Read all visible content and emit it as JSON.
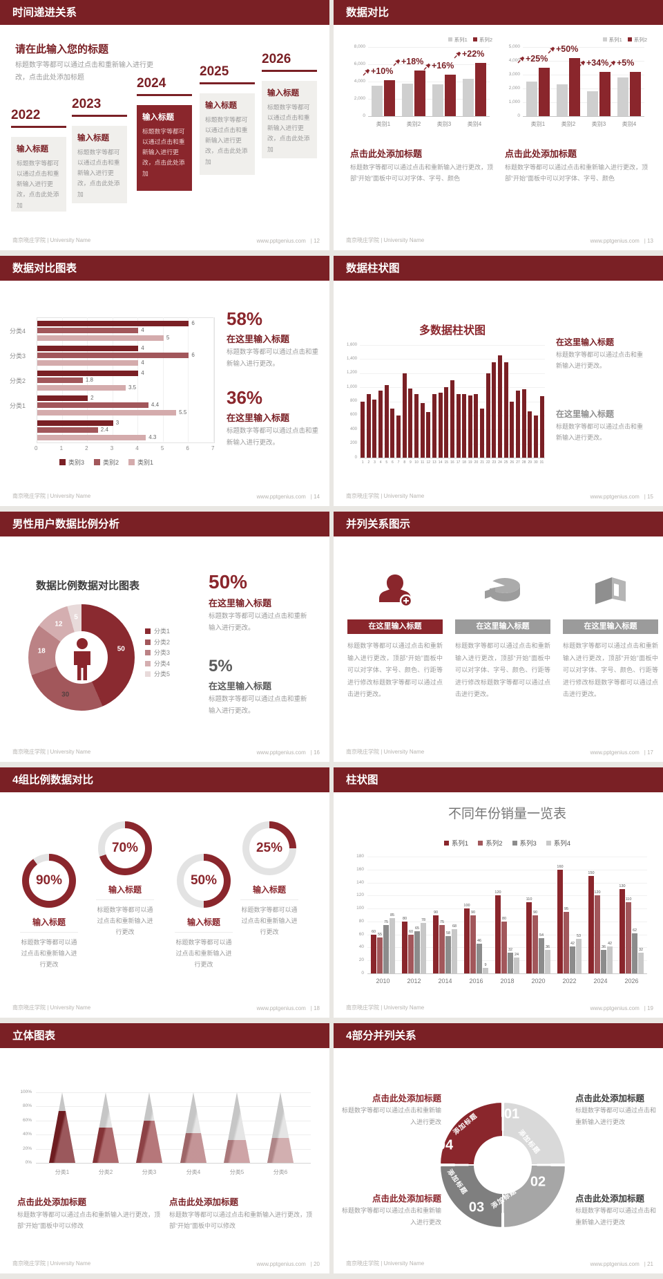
{
  "footer": {
    "left": "南京晓庄学院 | University Name",
    "site": "www.pptgenius.com",
    "sep": "| "
  },
  "slides": [
    {
      "header": "时间递进关系",
      "page": "12",
      "intro_title": "请在此输入您的标题",
      "intro_body": "标题数字等都可以通过点击和重新输入进行更改，点击此处添加标题",
      "card_title": "输入标题",
      "card_body": "标题数字等都可以通过点击和重新输入进行更改，点击此处添加",
      "years": [
        "2022",
        "2023",
        "2024",
        "2025",
        "2026"
      ]
    },
    {
      "header": "数据对比",
      "page": "13",
      "section_title": "点击此处添加标题",
      "section_body": "标题数字等都可以通过点击和重新输入进行更改，顶部“开始”面板中可以对字体、字号、颜色"
    },
    {
      "header": "数据对比图表",
      "page": "14",
      "stats": [
        {
          "pct": "58%",
          "title": "在这里输入标题",
          "body": "标题数字等都可以通过点击和重新输入进行更改。"
        },
        {
          "pct": "36%",
          "title": "在这里输入标题",
          "body": "标题数字等都可以通过点击和重新输入进行更改。"
        }
      ]
    },
    {
      "header": "数据柱状图",
      "page": "15",
      "blocks": [
        {
          "title": "在这里输入标题",
          "body": "标题数字等都可以通过点击和重新输入进行更改。"
        },
        {
          "title": "在这里输入标题",
          "body": "标题数字等都可以通过点击和重新输入进行更改。"
        }
      ]
    },
    {
      "header": "男性用户数据比例分析",
      "page": "16",
      "chart_title": "数据比例数据对比图表",
      "stats": [
        {
          "pct": "50%",
          "title": "在这里输入标题",
          "body": "标题数字等都可以通过点击和重新输入进行更改。"
        },
        {
          "pct": "5%",
          "title": "在这里输入标题",
          "body": "标题数字等都可以通过点击和重新输入进行更改。"
        }
      ]
    },
    {
      "header": "并列关系图示",
      "page": "17",
      "columns": [
        {
          "icon": "woman-plus-icon",
          "title": "在这里输入标题",
          "body": "标题数字等都可以通过点击和重新输入进行更改，顶部“开始”面板中可以对字体、字号、颜色、行距等进行修改标题数字等都可以通过点击进行更改。"
        },
        {
          "icon": "pie-3d-icon",
          "title": "在这里输入标题",
          "body": "标题数字等都可以通过点击和重新输入进行更改，顶部“开始”面板中可以对字体、字号、颜色、行距等进行修改标题数字等都可以通过点击进行更改。"
        },
        {
          "icon": "building-3d-icon",
          "title": "在这里输入标题",
          "body": "标题数字等都可以通过点击和重新输入进行更改，顶部“开始”面板中可以对字体、字号、颜色、行距等进行修改标题数字等都可以通过点击进行更改。"
        }
      ]
    },
    {
      "header": "4组比例数据对比",
      "page": "18",
      "items": [
        {
          "pct": "90%",
          "title": "输入标题",
          "body": "标题数字等都可以通过点击和重新输入进行更改"
        },
        {
          "pct": "70%",
          "title": "输入标题",
          "body": "标题数字等都可以通过点击和重新输入进行更改"
        },
        {
          "pct": "50%",
          "title": "输入标题",
          "body": "标题数字等都可以通过点击和重新输入进行更改"
        },
        {
          "pct": "25%",
          "title": "输入标题",
          "body": "标题数字等都可以通过点击和重新输入进行更改"
        }
      ]
    },
    {
      "header": "柱状图",
      "page": "19"
    },
    {
      "header": "立体图表",
      "page": "20",
      "blocks": [
        {
          "title": "点击此处添加标题",
          "body": "标题数字等都可以通过点击和重新输入进行更改，顶部“开始”面板中可以修改"
        },
        {
          "title": "点击此处添加标题",
          "body": "标题数字等都可以通过点击和重新输入进行更改，顶部“开始”面板中可以修改"
        }
      ]
    },
    {
      "header": "4部分并列关系",
      "page": "21",
      "blocks": [
        {
          "pos": "tl",
          "title": "点击此处添加标题",
          "body": "标题数字等都可以通过点击和重新输入进行更改"
        },
        {
          "pos": "tr",
          "title": "点击此处添加标题",
          "body": "标题数字等都可以通过点击和重新输入进行更改"
        },
        {
          "pos": "bl",
          "title": "点击此处添加标题",
          "body": "标题数字等都可以通过点击和重新输入进行更改"
        },
        {
          "pos": "br",
          "title": "点击此处添加标题",
          "body": "标题数字等都可以通过点击和重新输入进行更改"
        }
      ]
    }
  ],
  "chart_data": [
    {
      "id": "compare-left",
      "type": "bar",
      "categories": [
        "类别1",
        "类别2",
        "类别3",
        "类别4"
      ],
      "series": [
        {
          "name": "系列1",
          "color": "#cfcfcf",
          "values": [
            3500,
            3800,
            3700,
            4300
          ]
        },
        {
          "name": "系列2",
          "color": "#8a262c",
          "values": [
            4200,
            5300,
            4800,
            6200
          ]
        }
      ],
      "annotations": [
        "+10%",
        "+18%",
        "+16%",
        "+22%"
      ],
      "ylim": [
        0,
        8000
      ],
      "yticks": [
        0,
        2000,
        4000,
        6000,
        8000
      ],
      "legend_position": "top-right",
      "grid": true
    },
    {
      "id": "compare-right",
      "type": "bar",
      "categories": [
        "类别1",
        "类别2",
        "类别3",
        "类别4"
      ],
      "series": [
        {
          "name": "系列1",
          "color": "#cfcfcf",
          "values": [
            2500,
            2300,
            1800,
            2800
          ]
        },
        {
          "name": "系列2",
          "color": "#8a262c",
          "values": [
            3500,
            4200,
            3200,
            3200
          ]
        }
      ],
      "annotations": [
        "+25%",
        "+50%",
        "+34%",
        "+5%"
      ],
      "ylim": [
        0,
        5000
      ],
      "yticks": [
        0,
        1000,
        2000,
        3000,
        4000,
        5000
      ],
      "legend_position": "top-right",
      "grid": true
    },
    {
      "id": "hbar",
      "type": "bar",
      "orientation": "horizontal",
      "categories": [
        "分类4",
        "分类3",
        "分类2",
        "分类1",
        ""
      ],
      "series": [
        {
          "name": "类别3",
          "color": "#7a2025",
          "values": [
            6,
            4,
            4,
            2,
            3
          ]
        },
        {
          "name": "类别2",
          "color": "#a2575b",
          "values": [
            4,
            6,
            1.8,
            4.4,
            2.4
          ]
        },
        {
          "name": "类别1",
          "color": "#d4abac",
          "values": [
            5,
            4,
            3.5,
            5.5,
            4.3
          ]
        }
      ],
      "xlim": [
        0,
        7
      ],
      "xticks": [
        0,
        1,
        2,
        3,
        4,
        5,
        6,
        7
      ],
      "legend_position": "bottom",
      "value_labels": true,
      "grid": true
    },
    {
      "id": "multi-bar",
      "type": "bar",
      "title": "多数据柱状图",
      "x": [
        1,
        2,
        3,
        4,
        5,
        6,
        7,
        8,
        9,
        10,
        11,
        12,
        13,
        14,
        15,
        16,
        17,
        18,
        19,
        20,
        21,
        22,
        23,
        24,
        25,
        26,
        27,
        28,
        29,
        30,
        31
      ],
      "values": [
        800,
        900,
        820,
        950,
        1030,
        700,
        600,
        1200,
        980,
        900,
        780,
        650,
        900,
        920,
        1000,
        1100,
        900,
        900,
        880,
        900,
        700,
        1200,
        1350,
        1450,
        1350,
        800,
        950,
        970,
        660,
        600,
        870
      ],
      "color": "#7a2025",
      "ylim": [
        0,
        1600
      ],
      "ytick_step": 200,
      "grid": true
    },
    {
      "id": "donut",
      "type": "pie",
      "title": "数据比例数据对比图表",
      "labels": [
        "分类1",
        "分类2",
        "分类3",
        "分类4",
        "分类5"
      ],
      "values": [
        50,
        30,
        18,
        12,
        5
      ],
      "colors": [
        "#8a2a30",
        "#a2575b",
        "#bb8285",
        "#d4aeb0",
        "#e8dada"
      ],
      "label_colors": [
        "#ffffff",
        "#564040",
        "#ffffff",
        "#ffffff",
        "#ffffff"
      ],
      "hole": true,
      "legend_position": "right"
    },
    {
      "id": "progress-rings",
      "type": "pie",
      "variant": "progress-ring",
      "values": [
        90,
        70,
        50,
        25
      ],
      "color": "#8a262c",
      "track": "#e3e3e3"
    },
    {
      "id": "yearly-sales",
      "type": "bar",
      "title": "不同年份销量一览表",
      "categories": [
        "2010",
        "2012",
        "2014",
        "2016",
        "2018",
        "2020",
        "2022",
        "2024",
        "2026"
      ],
      "series": [
        {
          "name": "系列1",
          "color": "#8a262c",
          "values": [
            60,
            80,
            90,
            100,
            120,
            110,
            160,
            150,
            130
          ]
        },
        {
          "name": "系列2",
          "color": "#a2575b",
          "values": [
            55,
            60,
            75,
            90,
            80,
            90,
            95,
            120,
            110
          ]
        },
        {
          "name": "系列3",
          "color": "#8c8c8c",
          "values": [
            75,
            65,
            58,
            46,
            32,
            54,
            42,
            36,
            62
          ]
        },
        {
          "name": "系列4",
          "color": "#c8c8c8",
          "values": [
            85,
            78,
            68,
            9,
            24,
            36,
            53,
            42,
            32
          ]
        }
      ],
      "ylim": [
        0,
        180
      ],
      "ytick_step": 20,
      "value_labels": true,
      "legend_position": "top",
      "grid": true
    },
    {
      "id": "pyramids",
      "type": "bar",
      "variant": "pyramid",
      "categories": [
        "分类1",
        "分类2",
        "分类3",
        "分类4",
        "分类5",
        "分类6"
      ],
      "values": [
        74,
        50,
        60,
        42,
        32,
        35
      ],
      "unit": "%",
      "ylim": [
        0,
        100
      ],
      "colors": [
        "#7a2025",
        "#93383c",
        "#9d4a4e",
        "#b07174",
        "#bd8689",
        "#c39496"
      ]
    },
    {
      "id": "four-ring",
      "type": "pie",
      "variant": "four-segment-ring",
      "segments": [
        {
          "num": "01",
          "label": "添加标题",
          "color": "#d9d9d9"
        },
        {
          "num": "02",
          "label": "添加标题",
          "color": "#a6a6a6"
        },
        {
          "num": "03",
          "label": "添加标题",
          "color": "#7f7f7f"
        },
        {
          "num": "04",
          "label": "添加标题",
          "color": "#8a262c"
        }
      ]
    }
  ]
}
